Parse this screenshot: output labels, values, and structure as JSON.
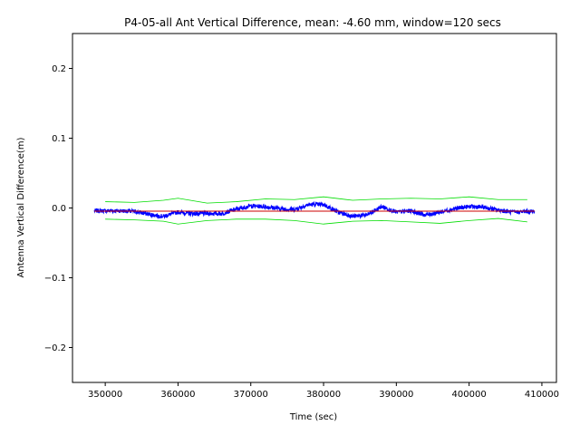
{
  "chart_data": {
    "type": "line",
    "title": "P4-05-all Ant Vertical Difference, mean: -4.60 mm, window=120 secs",
    "xlabel": "Time (sec)",
    "ylabel": "Antenna Vertical Difference(m)",
    "xlim": [
      345500,
      412000
    ],
    "ylim": [
      -0.25,
      0.25
    ],
    "xticks": [
      350000,
      360000,
      370000,
      380000,
      390000,
      400000,
      410000
    ],
    "xtick_labels": [
      "350000",
      "360000",
      "370000",
      "380000",
      "390000",
      "400000",
      "410000"
    ],
    "yticks": [
      -0.2,
      -0.1,
      0.0,
      0.1,
      0.2
    ],
    "ytick_labels": [
      "−0.2",
      "−0.1",
      "0.0",
      "0.1",
      "0.2"
    ],
    "grid": false,
    "series": [
      {
        "color": "#0000ff",
        "style": "noisy-line",
        "noise": 0.003,
        "x": [
          348500,
          350000,
          352000,
          354000,
          356000,
          358000,
          360000,
          362000,
          364000,
          366000,
          368000,
          370000,
          372000,
          374000,
          376000,
          378000,
          380000,
          382000,
          384000,
          386000,
          388000,
          390000,
          392000,
          394000,
          396000,
          398000,
          400000,
          402000,
          404000,
          406000,
          408000,
          409000
        ],
        "y": [
          -0.004,
          -0.004,
          -0.004,
          -0.005,
          -0.009,
          -0.012,
          -0.006,
          -0.008,
          -0.008,
          -0.008,
          -0.002,
          0.003,
          0.002,
          -0.001,
          -0.002,
          0.005,
          0.005,
          -0.006,
          -0.012,
          -0.01,
          0.002,
          -0.006,
          -0.004,
          -0.01,
          -0.006,
          -0.001,
          0.002,
          0.001,
          -0.003,
          -0.006,
          -0.005,
          -0.005
        ]
      },
      {
        "color": "#00dd00",
        "style": "line",
        "x": [
          350000,
          354000,
          358000,
          360000,
          364000,
          368000,
          372000,
          376000,
          380000,
          384000,
          388000,
          392000,
          396000,
          400000,
          404000,
          408000
        ],
        "y": [
          0.009,
          0.008,
          0.011,
          0.014,
          0.007,
          0.009,
          0.013,
          0.012,
          0.016,
          0.011,
          0.013,
          0.014,
          0.013,
          0.016,
          0.012,
          0.012
        ]
      },
      {
        "color": "#00dd00",
        "style": "line",
        "x": [
          350000,
          354000,
          358000,
          360000,
          364000,
          368000,
          372000,
          376000,
          380000,
          384000,
          388000,
          392000,
          396000,
          400000,
          404000,
          408000
        ],
        "y": [
          -0.016,
          -0.017,
          -0.019,
          -0.023,
          -0.018,
          -0.016,
          -0.016,
          -0.018,
          -0.023,
          -0.019,
          -0.018,
          -0.02,
          -0.022,
          -0.018,
          -0.015,
          -0.02
        ]
      },
      {
        "color": "#cc0000",
        "style": "line",
        "x": [
          348500,
          409000
        ],
        "y": [
          -0.0046,
          -0.0046
        ]
      }
    ]
  }
}
